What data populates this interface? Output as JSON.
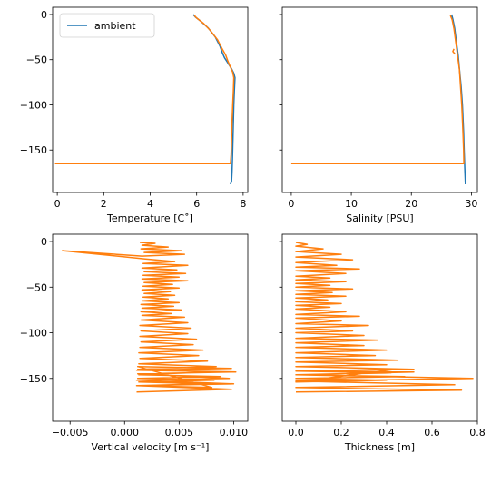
{
  "chart_data": [
    {
      "type": "line",
      "xlabel": "Temperature [C$^\\circ$]",
      "xlabel_display": "Temperature [C˚]",
      "ylabel": "",
      "xlim": [
        -0.2,
        8.2
      ],
      "ylim": [
        -197,
        8
      ],
      "xticks": [
        0,
        2,
        4,
        6,
        8
      ],
      "yticks": [
        0,
        -50,
        -100,
        -150
      ],
      "ytick_labels": [
        "0",
        "−50",
        "−100",
        "−150"
      ],
      "legend": {
        "entries": [
          "ambient"
        ],
        "placement": "upper-left"
      },
      "series": [
        {
          "name": "ambient",
          "color": "#1f77b4",
          "x": [
            5.85,
            5.95,
            6.2,
            6.5,
            6.8,
            7.0,
            7.1,
            7.2,
            7.3,
            7.4,
            7.5,
            7.6,
            7.65,
            7.62,
            7.6,
            7.58,
            7.56,
            7.54,
            7.52,
            7.5,
            7.45
          ],
          "y": [
            0,
            -3,
            -8,
            -15,
            -25,
            -35,
            -42,
            -48,
            -52,
            -56,
            -60,
            -65,
            -70,
            -85,
            -100,
            -120,
            -140,
            -160,
            -175,
            -185,
            -188
          ]
        },
        {
          "color": "#ff7f0e",
          "x": [
            5.9,
            6.0,
            6.3,
            6.6,
            6.9,
            7.1,
            7.25,
            7.35,
            7.45,
            7.55,
            7.6,
            7.58,
            7.55,
            7.52,
            7.5,
            7.48,
            7.46,
            7.45,
            -0.1
          ],
          "y": [
            -1,
            -4,
            -10,
            -18,
            -28,
            -38,
            -45,
            -52,
            -58,
            -64,
            -70,
            -85,
            -100,
            -120,
            -140,
            -155,
            -162,
            -165,
            -165
          ]
        }
      ]
    },
    {
      "type": "line",
      "xlabel": "Salinity [PSU]",
      "ylabel": "",
      "xlim": [
        -1.5,
        31
      ],
      "ylim": [
        -197,
        8
      ],
      "xticks": [
        0,
        10,
        20,
        30
      ],
      "yticks": [
        0,
        -50,
        -100,
        -150
      ],
      "series": [
        {
          "color": "#1f77b4",
          "x": [
            26.7,
            26.9,
            27.2,
            27.5,
            27.8,
            28.0,
            28.3,
            28.5,
            28.7,
            28.8,
            28.9,
            29.0
          ],
          "y": [
            0,
            -5,
            -15,
            -30,
            -45,
            -60,
            -80,
            -100,
            -130,
            -150,
            -170,
            -188
          ]
        },
        {
          "color": "#ff7f0e",
          "x": [
            26.5,
            26.8,
            27.1,
            27.4,
            27.7,
            28.0,
            28.2,
            28.4,
            28.6,
            28.7,
            28.75,
            0.0
          ],
          "y": [
            -1,
            -6,
            -16,
            -31,
            -46,
            -61,
            -81,
            -101,
            -131,
            -150,
            -165,
            -165
          ]
        },
        {
          "color": "#ff7f0e",
          "x": [
            27.1,
            26.9,
            27.3
          ],
          "y": [
            -38,
            -41,
            -44
          ]
        }
      ]
    },
    {
      "type": "line",
      "xlabel": "Vertical velocity [m s$^{-1}$]",
      "xlabel_display": "Vertical velocity [m s⁻¹]",
      "ylabel": "",
      "xlim": [
        -0.0066,
        0.0113
      ],
      "ylim": [
        -197,
        8
      ],
      "xticks": [
        -0.005,
        0.0,
        0.005,
        0.01
      ],
      "xtick_labels": [
        "−0.005",
        "0.000",
        "0.005",
        "0.010"
      ],
      "yticks": [
        0,
        -50,
        -100,
        -150
      ],
      "ytick_labels": [
        "0",
        "−50",
        "−100",
        "−150"
      ],
      "series": [
        {
          "color": "#ff7f0e",
          "x": [
            0.0014,
            0.0028,
            0.0016,
            0.004,
            0.0015,
            0.0052,
            0.0018,
            0.0055,
            0.0016,
            -0.0057,
            0.0018,
            0.0046,
            0.0017,
            0.0058,
            0.0016,
            0.0048,
            0.0018,
            0.0056,
            0.0017,
            0.005,
            0.0016,
            0.0058,
            0.0018,
            0.0044,
            0.0017,
            0.005,
            0.0016,
            0.0042,
            0.0018,
            0.0046,
            0.0017,
            0.004,
            0.0016,
            0.005,
            0.0015,
            0.0045,
            0.0016,
            0.0052,
            0.0015,
            0.0043,
            0.0016,
            0.0055,
            0.0015,
            0.0058,
            0.0014,
            0.0061,
            0.0015,
            0.0058,
            0.0014,
            0.0066,
            0.0015,
            0.0063,
            0.0014,
            0.0072,
            0.0013,
            0.0068,
            0.0014,
            0.0076,
            0.0013,
            0.0084,
            0.0012,
            0.0078,
            0.0013,
            0.0088,
            0.0012,
            0.0082,
            0.0013,
            0.0076,
            0.0012,
            0.008,
            0.0012,
            0.0098,
            0.0011,
            0.0102,
            0.0012,
            0.0096,
            0.0011,
            0.01,
            0.0011,
            0.0098,
            0.0011
          ],
          "y": [
            -1,
            -2,
            -4,
            -6,
            -8,
            -10,
            -12,
            -14,
            -16,
            -10,
            -19,
            -22,
            -24,
            -26,
            -29,
            -31,
            -33,
            -35,
            -37,
            -39,
            -41,
            -43,
            -45,
            -47,
            -49,
            -51,
            -53,
            -55,
            -57,
            -59,
            -61,
            -63,
            -65,
            -67,
            -69,
            -71,
            -73,
            -75,
            -77,
            -79,
            -81,
            -83,
            -86,
            -89,
            -92,
            -95,
            -98,
            -101,
            -104,
            -107,
            -110,
            -113,
            -116,
            -119,
            -122,
            -125,
            -128,
            -131,
            -134,
            -137,
            -140,
            -143,
            -146,
            -148,
            -150,
            -152,
            -154,
            -156,
            -158,
            -160,
            -137,
            -139,
            -141,
            -143,
            -145,
            -150,
            -152,
            -156,
            -158,
            -162,
            -165
          ]
        }
      ]
    },
    {
      "type": "line",
      "xlabel": "Thickness [m]",
      "ylabel": "",
      "xlim": [
        -0.06,
        0.8
      ],
      "ylim": [
        -197,
        8
      ],
      "xticks": [
        0.0,
        0.2,
        0.4,
        0.6,
        0.8
      ],
      "xtick_labels": [
        "0.0",
        "0.2",
        "0.4",
        "0.6",
        "0.8"
      ],
      "yticks": [
        0,
        -50,
        -100,
        -150
      ],
      "series": [
        {
          "color": "#ff7f0e",
          "x": [
            0.0,
            0.05,
            0.0,
            0.12,
            0.0,
            0.2,
            0.0,
            0.25,
            0.0,
            0.18,
            0.0,
            0.28,
            0.0,
            0.22,
            0.0,
            0.15,
            0.0,
            0.22,
            0.0,
            0.15,
            0.0,
            0.25,
            0.0,
            0.16,
            0.0,
            0.22,
            0.0,
            0.14,
            0.0,
            0.2,
            0.0,
            0.15,
            0.0,
            0.22,
            0.0,
            0.28,
            0.0,
            0.2,
            0.0,
            0.32,
            0.0,
            0.25,
            0.0,
            0.3,
            0.0,
            0.36,
            0.0,
            0.3,
            0.0,
            0.4,
            0.0,
            0.35,
            0.0,
            0.45,
            0.0,
            0.4,
            0.0,
            0.52,
            0.0,
            0.42,
            0.0,
            0.48,
            0.0,
            0.4,
            0.0,
            0.44,
            0.0,
            0.52,
            0.0,
            0.78,
            0.0,
            0.7,
            0.0,
            0.73,
            0.0
          ],
          "y": [
            -1,
            -3,
            -5,
            -8,
            -11,
            -14,
            -17,
            -20,
            -23,
            -26,
            -28,
            -30,
            -32,
            -35,
            -38,
            -40,
            -42,
            -44,
            -46,
            -48,
            -50,
            -52,
            -54,
            -56,
            -58,
            -60,
            -62,
            -64,
            -66,
            -68,
            -70,
            -72,
            -74,
            -77,
            -80,
            -82,
            -84,
            -87,
            -90,
            -92,
            -95,
            -98,
            -100,
            -103,
            -106,
            -108,
            -111,
            -114,
            -116,
            -119,
            -122,
            -125,
            -127,
            -130,
            -132,
            -135,
            -137,
            -140,
            -142,
            -144,
            -146,
            -148,
            -150,
            -152,
            -154,
            -140,
            -142,
            -143,
            -146,
            -150,
            -153,
            -157,
            -160,
            -163,
            -165
          ]
        }
      ]
    }
  ]
}
